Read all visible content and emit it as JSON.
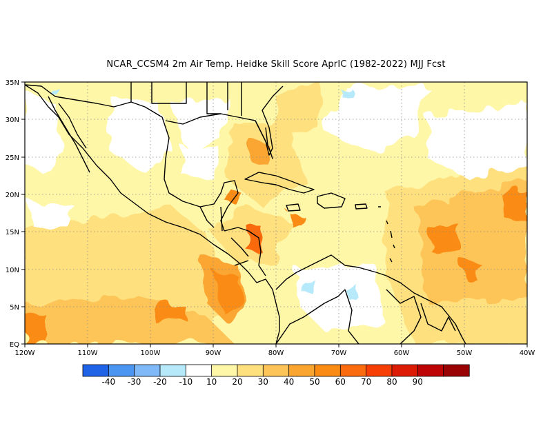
{
  "title": "NCAR_CCSM4  2m Air Temp. Heidke Skill Score AprIC (1982-2022) MJJ Fcst",
  "map": {
    "lon_range": [
      -120,
      -40
    ],
    "lat_range": [
      0,
      35
    ],
    "grid": "dotted",
    "lon_labels": [
      "120W",
      "110W",
      "100W",
      "90W",
      "80W",
      "70W",
      "60W",
      "50W",
      "40W"
    ],
    "lat_labels": [
      "EQ",
      "5N",
      "10N",
      "15N",
      "20N",
      "25N",
      "30N",
      "35N"
    ]
  },
  "colorbar": {
    "colors": [
      "#1f64e6",
      "#4a96f0",
      "#7fb9f7",
      "#b6e9f9",
      "#ffffff",
      "#fff7a8",
      "#fee07e",
      "#fdc559",
      "#fba531",
      "#fa8c16",
      "#fa6a0f",
      "#f73e07",
      "#dd1b05",
      "#be0404",
      "#9a0303"
    ],
    "labels": [
      "-40",
      "-30",
      "-20",
      "-10",
      "10",
      "20",
      "30",
      "40",
      "50",
      "60",
      "70",
      "80",
      "90"
    ]
  }
}
